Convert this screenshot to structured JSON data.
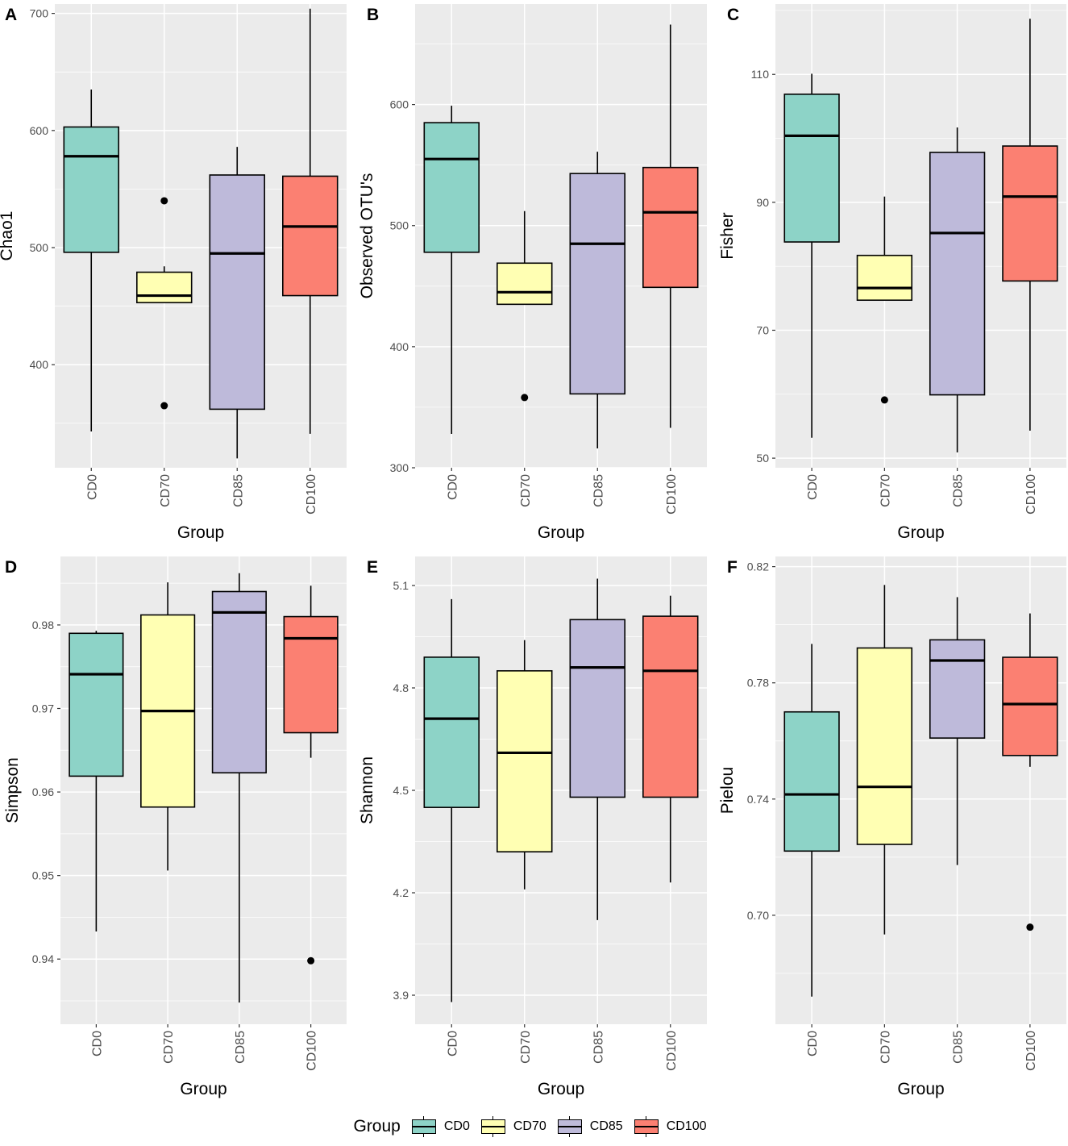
{
  "legend": {
    "title": "Group",
    "items": [
      {
        "label": "CD0",
        "color": "#8dd3c7"
      },
      {
        "label": "CD70",
        "color": "#ffffb3"
      },
      {
        "label": "CD85",
        "color": "#bebada"
      },
      {
        "label": "CD100",
        "color": "#fb8072"
      }
    ]
  },
  "chart_data": [
    {
      "panel_label": "A",
      "type": "box",
      "xlabel": "Group",
      "ylabel": "Chao1",
      "ylim": [
        312,
        708
      ],
      "yticks": [
        400,
        500,
        600,
        700
      ],
      "categories": [
        "CD0",
        "CD70",
        "CD85",
        "CD100"
      ],
      "boxes": [
        {
          "whisker_low": 343,
          "q1": 496,
          "median": 578,
          "q3": 603,
          "whisker_high": 635,
          "outliers": []
        },
        {
          "whisker_low": 453,
          "q1": 453,
          "median": 459,
          "q3": 479,
          "whisker_high": 484,
          "outliers": [
            540,
            365
          ]
        },
        {
          "whisker_low": 320,
          "q1": 362,
          "median": 495,
          "q3": 562,
          "whisker_high": 586,
          "outliers": []
        },
        {
          "whisker_low": 341,
          "q1": 459,
          "median": 518,
          "q3": 561,
          "whisker_high": 704,
          "outliers": []
        }
      ]
    },
    {
      "panel_label": "B",
      "type": "box",
      "xlabel": "Group",
      "ylabel": "Observed OTU's",
      "ylim": [
        300,
        683
      ],
      "yticks": [
        300,
        400,
        500,
        600
      ],
      "categories": [
        "CD0",
        "CD70",
        "CD85",
        "CD100"
      ],
      "boxes": [
        {
          "whisker_low": 328,
          "q1": 478,
          "median": 555,
          "q3": 585,
          "whisker_high": 599,
          "outliers": []
        },
        {
          "whisker_low": 435,
          "q1": 435,
          "median": 445,
          "q3": 469,
          "whisker_high": 512,
          "outliers": [
            358
          ]
        },
        {
          "whisker_low": 316,
          "q1": 361,
          "median": 485,
          "q3": 543,
          "whisker_high": 561,
          "outliers": []
        },
        {
          "whisker_low": 333,
          "q1": 449,
          "median": 511,
          "q3": 548,
          "whisker_high": 666,
          "outliers": []
        }
      ]
    },
    {
      "panel_label": "C",
      "type": "box",
      "xlabel": "Group",
      "ylabel": "Fisher",
      "ylim": [
        48.5,
        121
      ],
      "yticks": [
        50,
        70,
        90,
        110
      ],
      "categories": [
        "CD0",
        "CD70",
        "CD85",
        "CD100"
      ],
      "boxes": [
        {
          "whisker_low": 53.2,
          "q1": 83.8,
          "median": 100.4,
          "q3": 106.9,
          "whisker_high": 110.1,
          "outliers": []
        },
        {
          "whisker_low": 74.7,
          "q1": 74.7,
          "median": 76.6,
          "q3": 81.7,
          "whisker_high": 90.9,
          "outliers": [
            59.1
          ]
        },
        {
          "whisker_low": 50.9,
          "q1": 59.9,
          "median": 85.2,
          "q3": 97.8,
          "whisker_high": 101.7,
          "outliers": []
        },
        {
          "whisker_low": 54.3,
          "q1": 77.7,
          "median": 90.9,
          "q3": 98.8,
          "whisker_high": 118.7,
          "outliers": []
        }
      ]
    },
    {
      "panel_label": "D",
      "type": "box",
      "xlabel": "Group",
      "ylabel": "Simpson",
      "ylim": [
        0.9322,
        0.9882
      ],
      "yticks": [
        0.94,
        0.95,
        0.96,
        0.97,
        0.98
      ],
      "categories": [
        "CD0",
        "CD70",
        "CD85",
        "CD100"
      ],
      "boxes": [
        {
          "whisker_low": 0.9433,
          "q1": 0.9619,
          "median": 0.9741,
          "q3": 0.979,
          "whisker_high": 0.9793,
          "outliers": []
        },
        {
          "whisker_low": 0.9506,
          "q1": 0.9582,
          "median": 0.9697,
          "q3": 0.9812,
          "whisker_high": 0.9851,
          "outliers": []
        },
        {
          "whisker_low": 0.9348,
          "q1": 0.9623,
          "median": 0.9815,
          "q3": 0.984,
          "whisker_high": 0.9862,
          "outliers": []
        },
        {
          "whisker_low": 0.9641,
          "q1": 0.9671,
          "median": 0.9784,
          "q3": 0.981,
          "whisker_high": 0.9847,
          "outliers": [
            0.9398
          ]
        }
      ]
    },
    {
      "panel_label": "E",
      "type": "box",
      "xlabel": "Group",
      "ylabel": "Shannon",
      "ylim": [
        3.815,
        5.185
      ],
      "yticks": [
        3.9,
        4.2,
        4.5,
        4.8,
        5.1
      ],
      "categories": [
        "CD0",
        "CD70",
        "CD85",
        "CD100"
      ],
      "boxes": [
        {
          "whisker_low": 3.88,
          "q1": 4.45,
          "median": 4.71,
          "q3": 4.89,
          "whisker_high": 5.06,
          "outliers": []
        },
        {
          "whisker_low": 4.21,
          "q1": 4.32,
          "median": 4.61,
          "q3": 4.85,
          "whisker_high": 4.94,
          "outliers": []
        },
        {
          "whisker_low": 4.12,
          "q1": 4.48,
          "median": 4.86,
          "q3": 5.0,
          "whisker_high": 5.12,
          "outliers": []
        },
        {
          "whisker_low": 4.23,
          "q1": 4.48,
          "median": 4.85,
          "q3": 5.01,
          "whisker_high": 5.07,
          "outliers": []
        }
      ]
    },
    {
      "panel_label": "F",
      "type": "box",
      "xlabel": "Group",
      "ylabel": "Pielou",
      "ylim": [
        0.6625,
        0.8235
      ],
      "yticks": [
        0.7,
        0.74,
        0.78,
        0.82
      ],
      "categories": [
        "CD0",
        "CD70",
        "CD85",
        "CD100"
      ],
      "boxes": [
        {
          "whisker_low": 0.672,
          "q1": 0.7221,
          "median": 0.7416,
          "q3": 0.77,
          "whisker_high": 0.7934,
          "outliers": []
        },
        {
          "whisker_low": 0.6934,
          "q1": 0.7244,
          "median": 0.7442,
          "q3": 0.792,
          "whisker_high": 0.8137,
          "outliers": []
        },
        {
          "whisker_low": 0.7173,
          "q1": 0.761,
          "median": 0.7877,
          "q3": 0.7948,
          "whisker_high": 0.8095,
          "outliers": []
        },
        {
          "whisker_low": 0.7511,
          "q1": 0.755,
          "median": 0.7727,
          "q3": 0.7888,
          "whisker_high": 0.8039,
          "outliers": [
            0.6959
          ]
        }
      ]
    }
  ]
}
